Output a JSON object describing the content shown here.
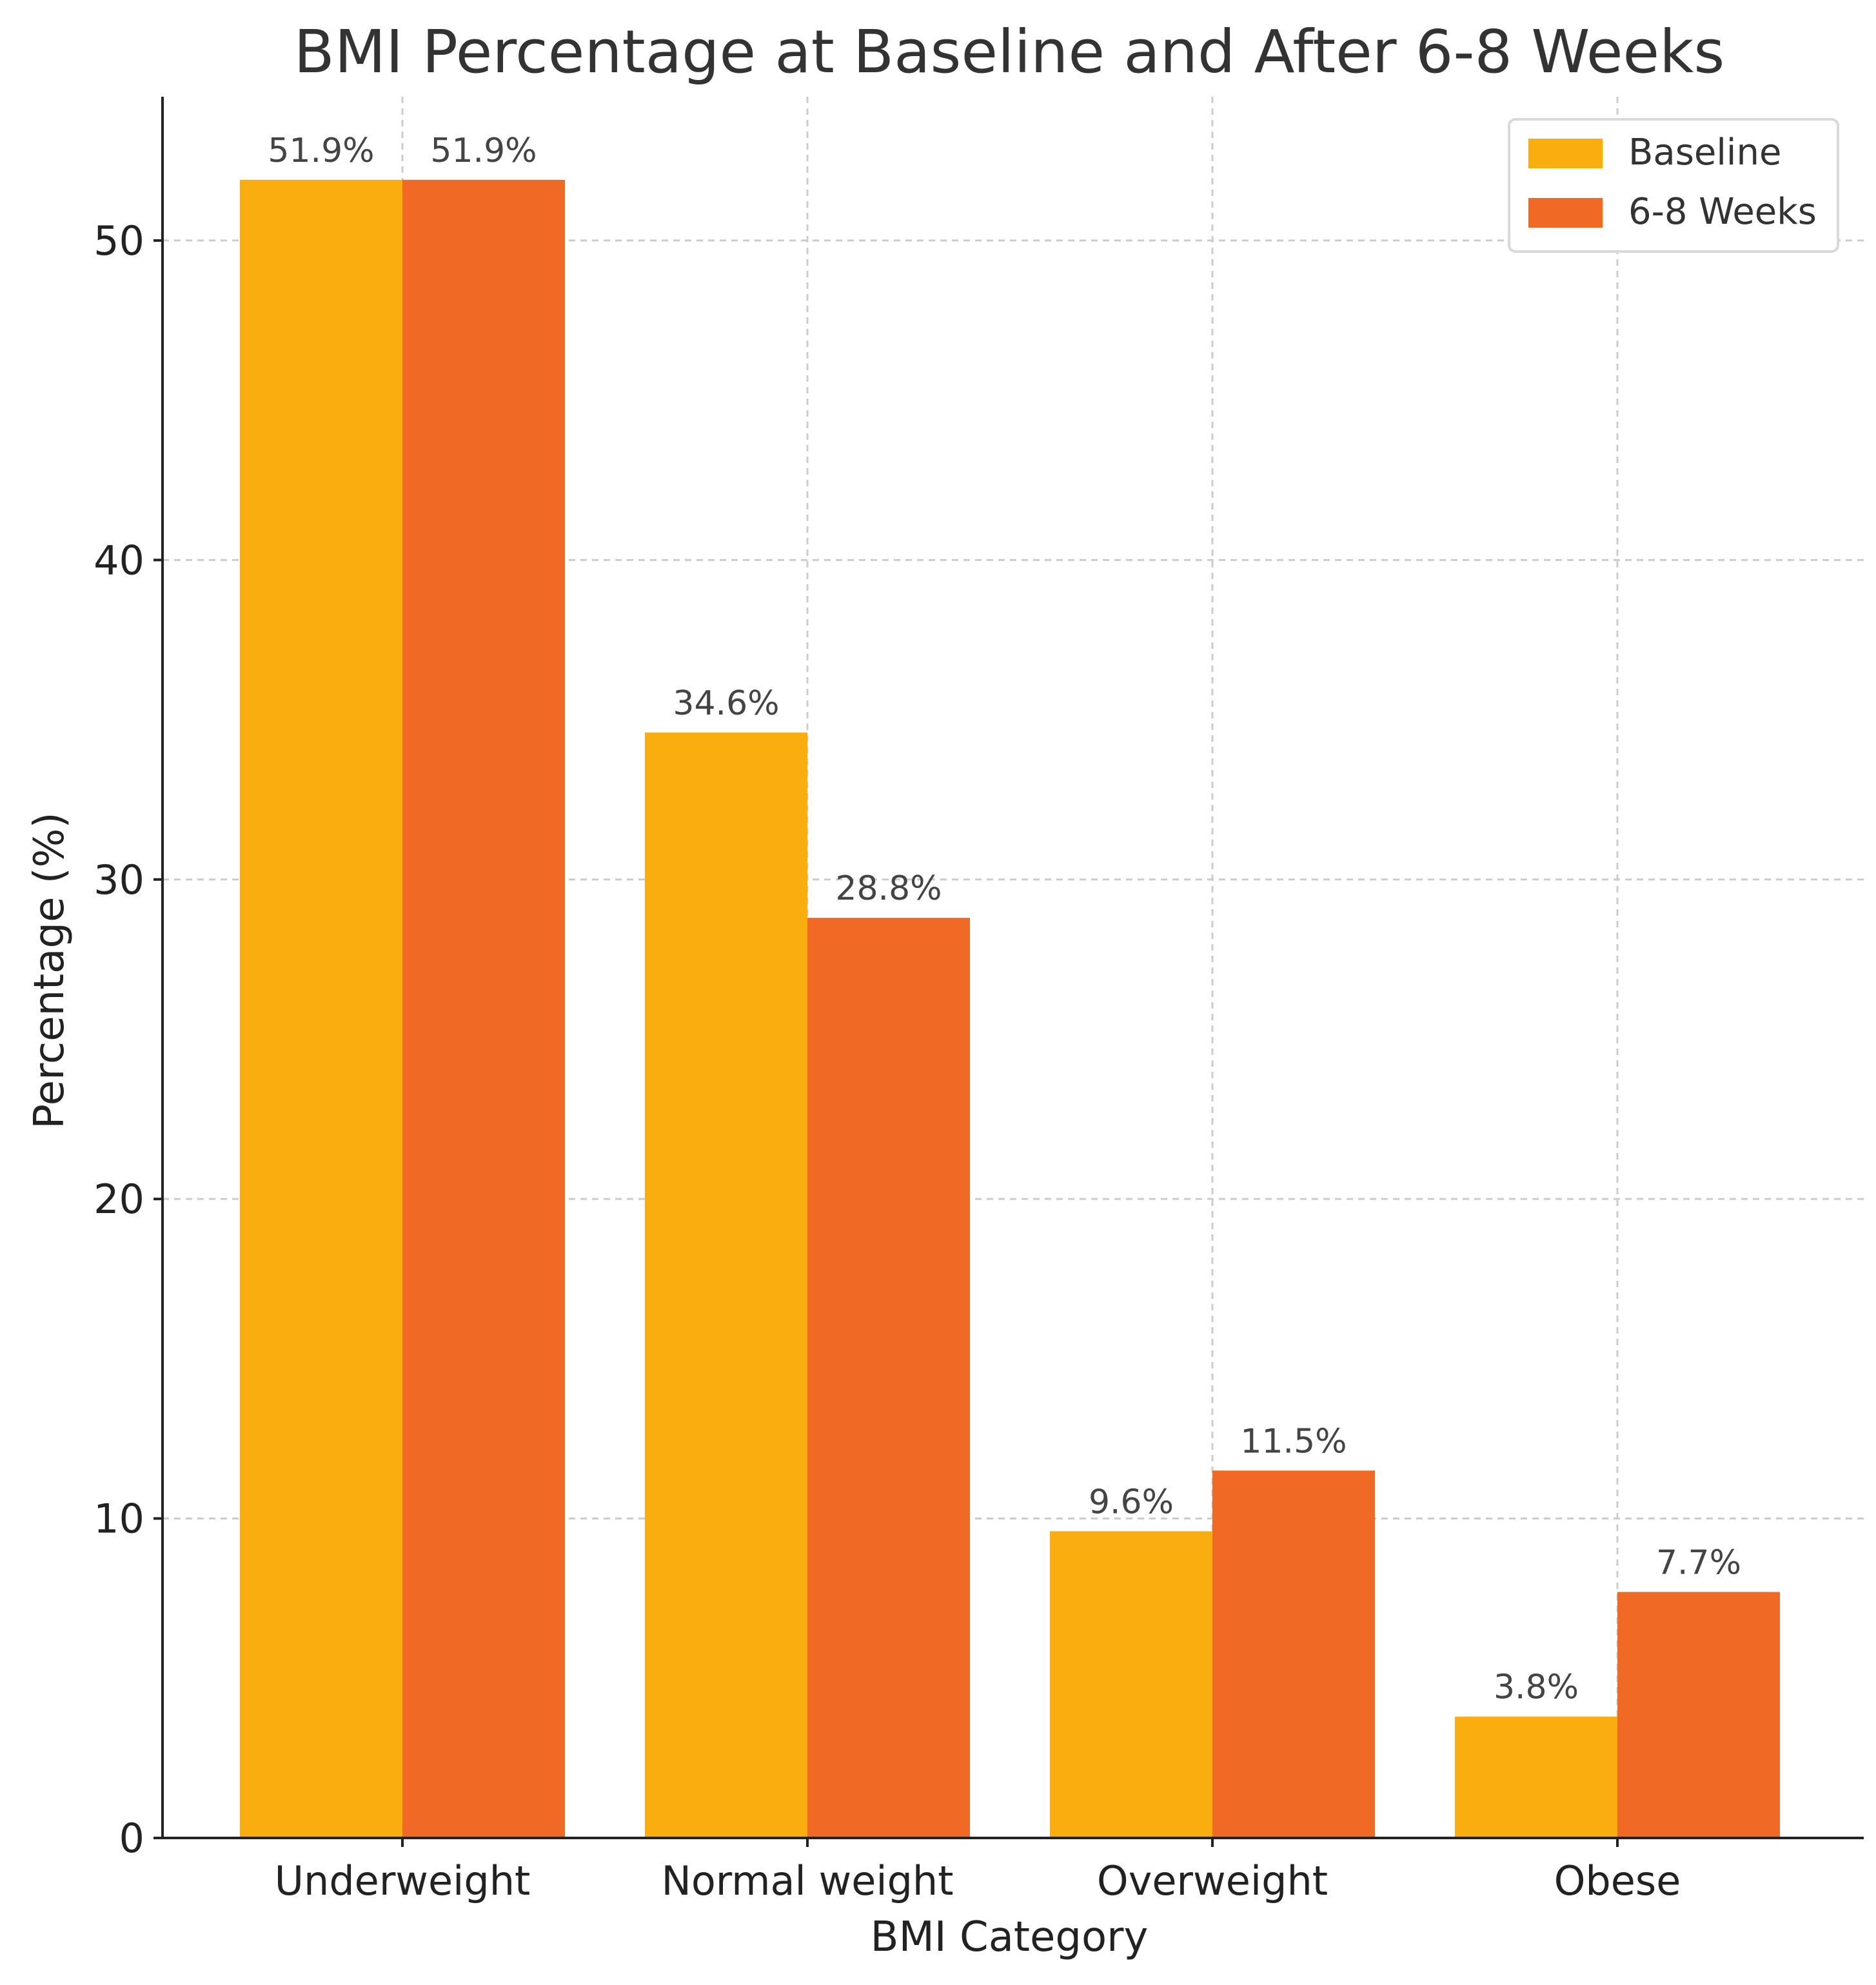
{
  "chart_data": {
    "type": "bar",
    "title": "BMI Percentage at Baseline and After 6-8 Weeks",
    "xlabel": "BMI Category",
    "ylabel": "Percentage (%)",
    "categories": [
      "Underweight",
      "Normal weight",
      "Overweight",
      "Obese"
    ],
    "series": [
      {
        "name": "Baseline",
        "color": "#FAAD0F",
        "values": [
          51.9,
          34.6,
          9.6,
          3.8
        ],
        "labels": [
          "51.9%",
          "34.6%",
          "9.6%",
          "3.8%"
        ]
      },
      {
        "name": "6-8 Weeks",
        "color": "#F06A25",
        "values": [
          51.9,
          28.8,
          11.5,
          7.7
        ],
        "labels": [
          "51.9%",
          "28.8%",
          "11.5%",
          "7.7%"
        ]
      }
    ],
    "ylim": [
      0,
      54.5
    ],
    "yticks": [
      0,
      10,
      20,
      30,
      40,
      50
    ],
    "ytick_labels": [
      "0",
      "10",
      "20",
      "30",
      "40",
      "50"
    ],
    "grid": true,
    "legend_position": "top-right"
  }
}
